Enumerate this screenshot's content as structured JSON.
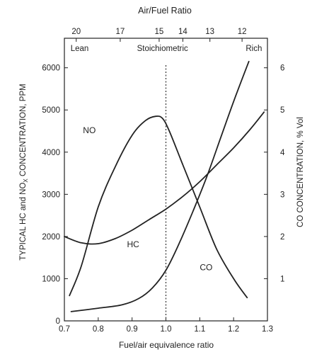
{
  "chart_data": {
    "type": "line",
    "title": "",
    "xlabel": "Fuel/air equivalence ratio",
    "x_top_label": "Air/Fuel Ratio",
    "ylabel_left": "TYPICAL HC and NO",
    "ylabel_left_sub": "X",
    "ylabel_left_end": " CONCENTRATION, PPM",
    "ylabel_right": "CO CONCENTRATION, % Vol",
    "xlim": [
      0.7,
      1.3
    ],
    "ylim_left": [
      0,
      6700
    ],
    "ylim_right": [
      0,
      6.7
    ],
    "x_ticks": [
      0.7,
      0.8,
      0.9,
      1.0,
      1.1,
      1.2,
      1.3
    ],
    "x_tick_labels": [
      "0.7",
      "0.8",
      "0.9",
      "1.0",
      "1.1",
      "1.2",
      "1.3"
    ],
    "y_left_ticks": [
      0,
      1000,
      2000,
      3000,
      4000,
      5000,
      6000
    ],
    "y_left_tick_labels": [
      "0",
      "1000",
      "2000",
      "3000",
      "4000",
      "5000",
      "6000"
    ],
    "y_right_ticks": [
      1,
      2,
      3,
      4,
      5,
      6
    ],
    "y_right_tick_labels": [
      "1",
      "2",
      "3",
      "4",
      "5",
      "6"
    ],
    "top_ticks": [
      {
        "afr": 20,
        "phi": 0.735,
        "label": "20"
      },
      {
        "afr": 17,
        "phi": 0.865,
        "label": "17"
      },
      {
        "afr": 15,
        "phi": 0.98,
        "label": "15"
      },
      {
        "afr": 14,
        "phi": 1.05,
        "label": "14"
      },
      {
        "afr": 13,
        "phi": 1.13,
        "label": "13"
      },
      {
        "afr": 12,
        "phi": 1.225,
        "label": "12"
      }
    ],
    "regions": [
      {
        "label": "Lean",
        "x": 0.745
      },
      {
        "label": "Stoichiometric",
        "x": 0.99
      },
      {
        "label": "Rich",
        "x": 1.26
      }
    ],
    "stoichiometric_line_x": 1.0,
    "series": [
      {
        "name": "NO",
        "axis": "left",
        "label_at": [
          0.755,
          4450
        ],
        "x": [
          0.715,
          0.75,
          0.8,
          0.85,
          0.9,
          0.94,
          0.97,
          0.99,
          1.01,
          1.05,
          1.1,
          1.15,
          1.2,
          1.24
        ],
        "y": [
          600,
          1300,
          2700,
          3650,
          4400,
          4750,
          4850,
          4800,
          4500,
          3700,
          2700,
          1700,
          1000,
          550
        ]
      },
      {
        "name": "HC",
        "axis": "left",
        "label_at": [
          0.885,
          1750
        ],
        "x": [
          0.7,
          0.75,
          0.8,
          0.85,
          0.9,
          0.95,
          1.0,
          1.05,
          1.1,
          1.15,
          1.2,
          1.25,
          1.29
        ],
        "y": [
          2000,
          1850,
          1830,
          1950,
          2150,
          2400,
          2650,
          2950,
          3300,
          3700,
          4100,
          4550,
          4950
        ]
      },
      {
        "name": "CO",
        "axis": "right",
        "label_at": [
          1.1,
          1.2
        ],
        "x": [
          0.72,
          0.8,
          0.87,
          0.92,
          0.96,
          1.0,
          1.04,
          1.08,
          1.12,
          1.16,
          1.2,
          1.245
        ],
        "y": [
          0.22,
          0.3,
          0.38,
          0.53,
          0.78,
          1.2,
          1.85,
          2.6,
          3.4,
          4.3,
          5.2,
          6.15
        ]
      }
    ]
  }
}
